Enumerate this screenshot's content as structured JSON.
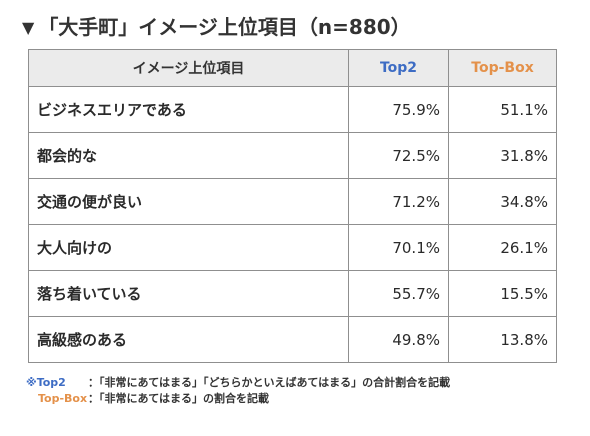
{
  "title": "「大手町」イメージ上位項目（n=880）",
  "title_marker": "▼",
  "table": {
    "headers": {
      "item": "イメージ上位項目",
      "top2": "Top2",
      "topbox": "Top-Box"
    },
    "rows": [
      {
        "item": "ビジネスエリアである",
        "top2": "75.9%",
        "topbox": "51.1%"
      },
      {
        "item": "都会的な",
        "top2": "72.5%",
        "topbox": "31.8%"
      },
      {
        "item": "交通の便が良い",
        "top2": "71.2%",
        "topbox": "34.8%"
      },
      {
        "item": "大人向けの",
        "top2": "70.1%",
        "topbox": "26.1%"
      },
      {
        "item": "落ち着いている",
        "top2": "55.7%",
        "topbox": "15.5%"
      },
      {
        "item": "高級感のある",
        "top2": "49.8%",
        "topbox": "13.8%"
      }
    ]
  },
  "notes": {
    "prefix": "※",
    "top2_term": "Top2",
    "top2_desc": "：「非常にあてはまる」「どちらかといえばあてはまる」の合計割合を記載",
    "topbox_term": "Top-Box",
    "topbox_desc": "：「非常にあてはまる」の割合を記載"
  },
  "colors": {
    "top2": "#3d6cc4",
    "topbox": "#e4914a",
    "header_bg": "#ebebeb",
    "border": "#8f8f8f"
  }
}
